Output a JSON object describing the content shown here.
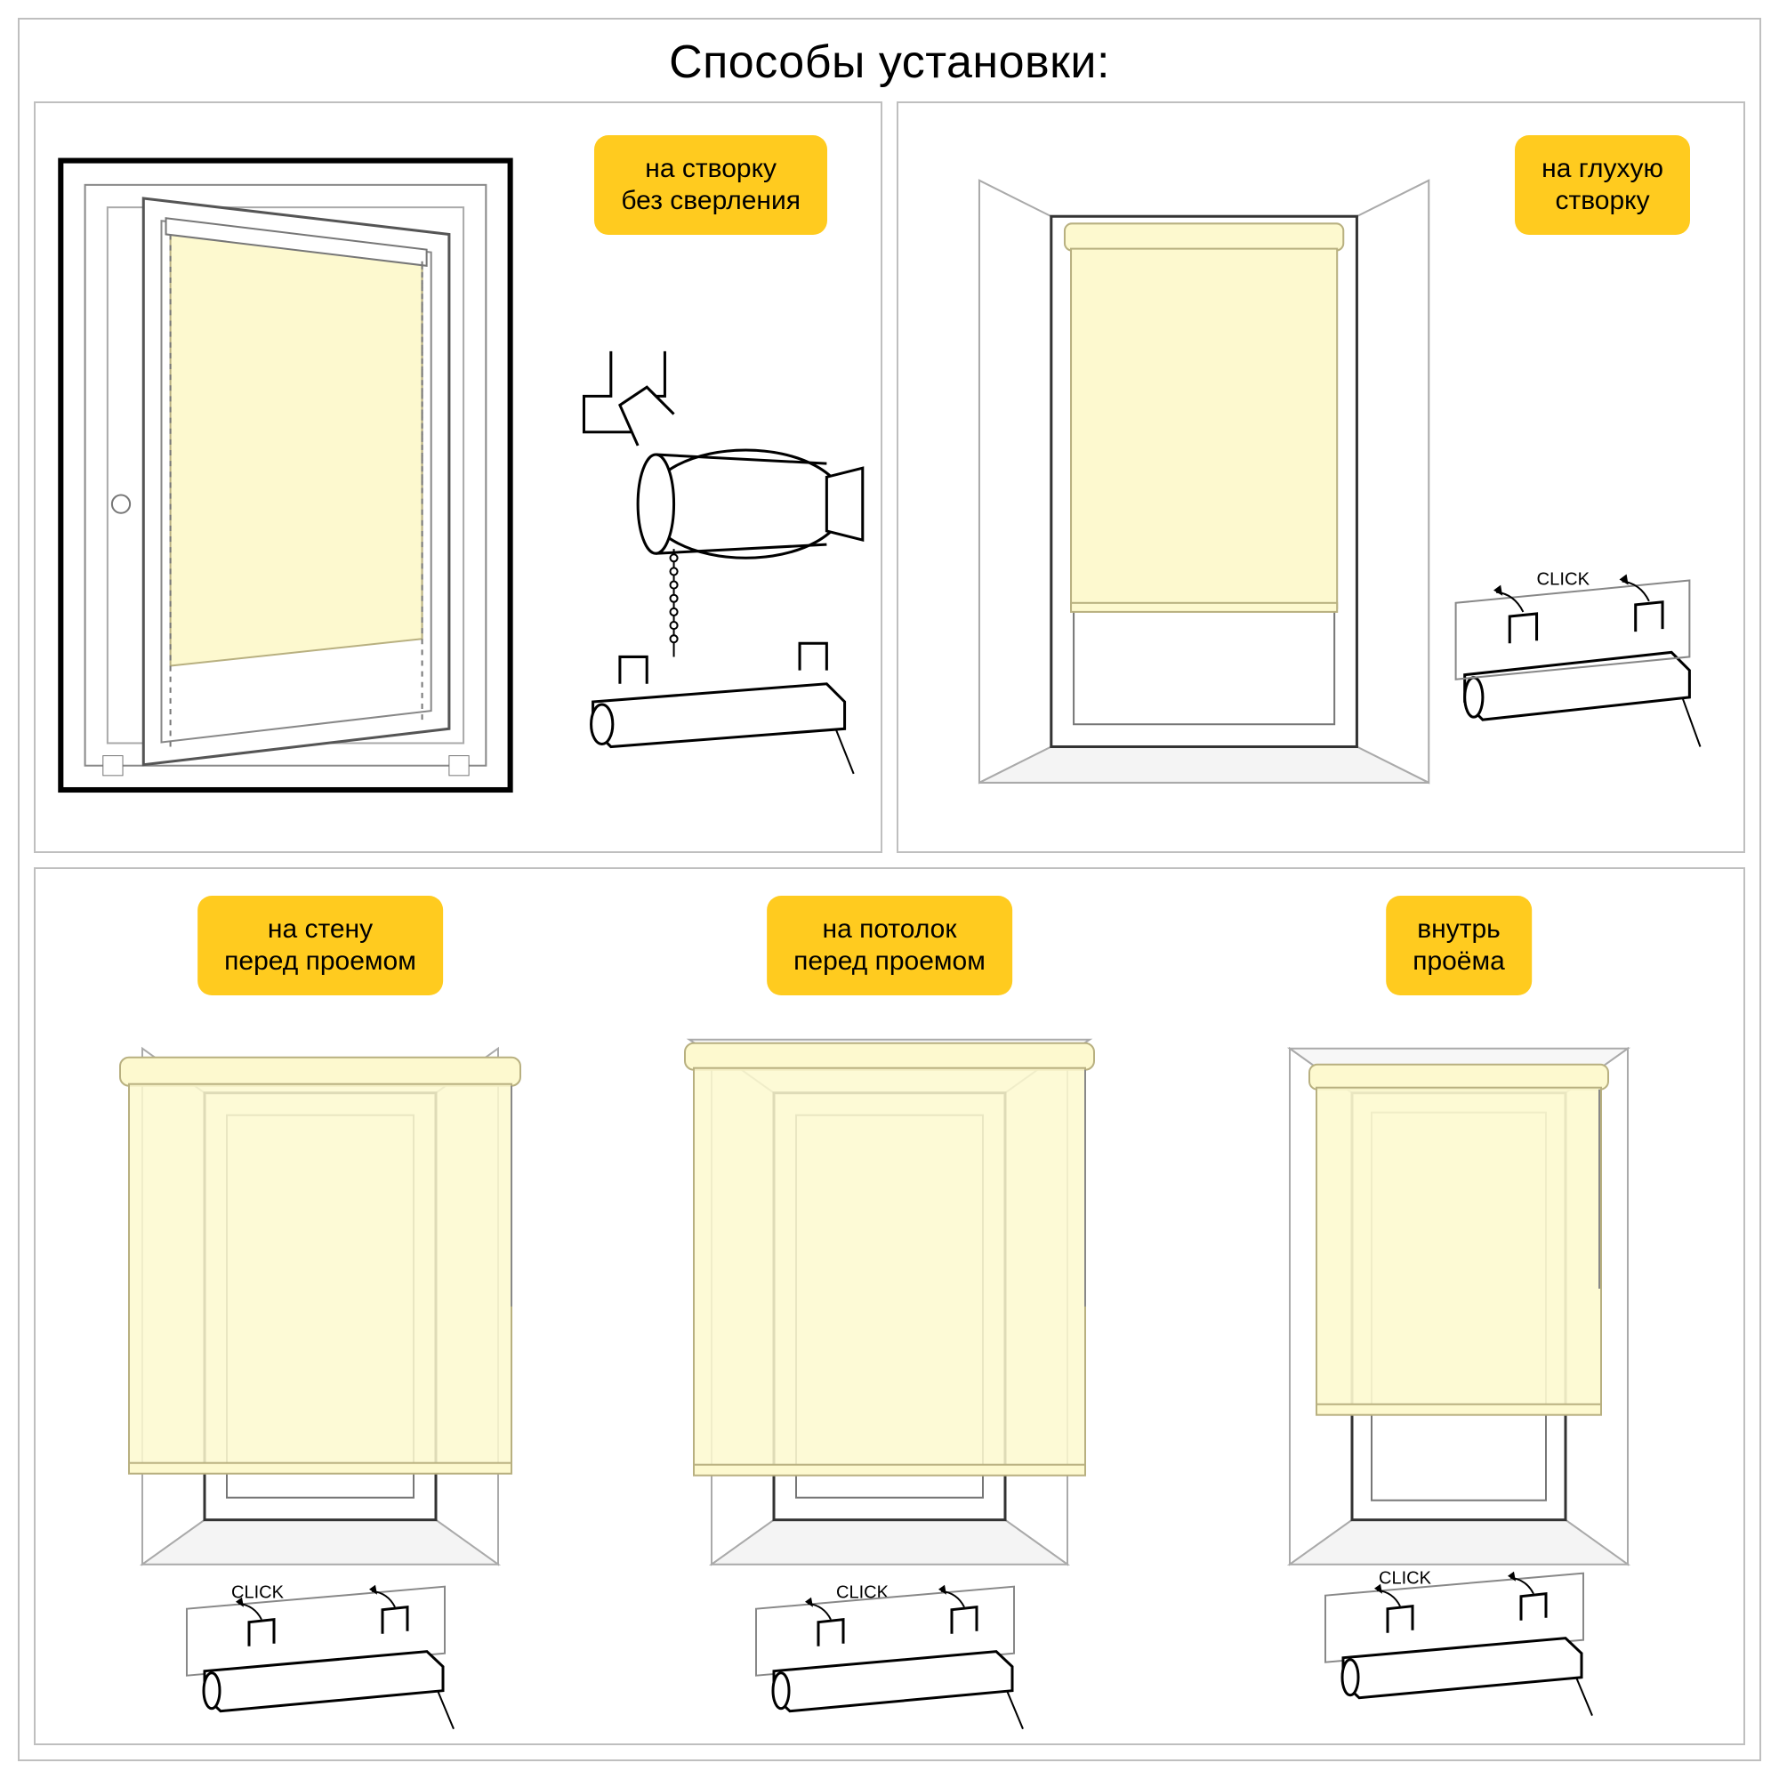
{
  "title": "Способы установки:",
  "colors": {
    "border": "#bfbfbf",
    "innerBorder": "#8a8a8a",
    "tag_bg": "#ffcb1f",
    "blind": "#fdf9cf",
    "blind_edge": "#b8b080",
    "wall": "#ffffff",
    "wall_shade": "#e0e0e0",
    "line": "#000000",
    "grey_line": "#777777"
  },
  "labels": {
    "top_left": "на створку\nбез сверления",
    "top_right": "на глухую\nстворку",
    "bottom_1": "на стену\nперед проемом",
    "bottom_2": "на потолок\nперед проемом",
    "bottom_3": "внутрь\nпроёма",
    "click": "CLICK"
  },
  "typography": {
    "title_fontsize": 52,
    "tag_fontsize": 30,
    "click_fontsize": 20
  }
}
